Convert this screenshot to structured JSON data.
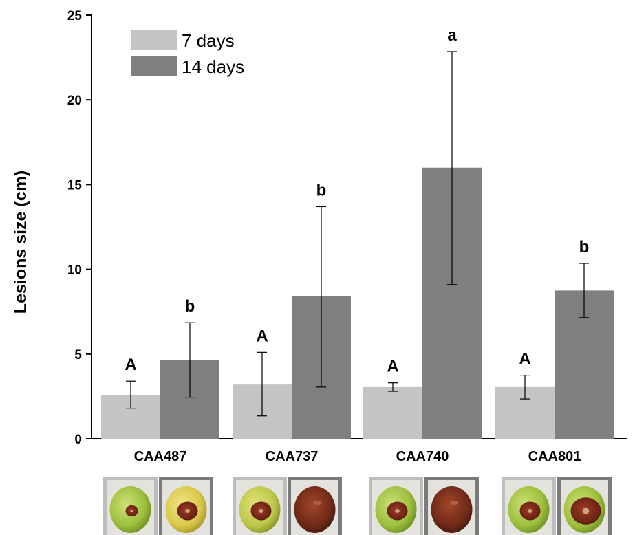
{
  "chart_data": {
    "type": "bar",
    "ylabel": "Lesions size (cm)",
    "ylim": [
      0,
      25
    ],
    "yticks": [
      0,
      5,
      10,
      15,
      20,
      25
    ],
    "categories": [
      "CAA487",
      "CAA737",
      "CAA740",
      "CAA801"
    ],
    "series": [
      {
        "name": "7 days",
        "color": "#c4c4c4",
        "values": [
          2.6,
          3.2,
          3.05,
          3.05
        ],
        "error_low": [
          1.8,
          1.35,
          2.8,
          2.35
        ],
        "error_high": [
          3.4,
          5.1,
          3.3,
          3.75
        ],
        "labels": [
          "A",
          "A",
          "A",
          "A"
        ]
      },
      {
        "name": "14 days",
        "color": "#7f7f7f",
        "values": [
          4.65,
          8.4,
          16.0,
          8.75
        ],
        "error_low": [
          2.45,
          3.05,
          9.1,
          7.15
        ],
        "error_high": [
          6.85,
          13.7,
          22.85,
          10.35
        ],
        "labels": [
          "b",
          "b",
          "a",
          "b"
        ]
      }
    ],
    "legend_position": "top-left",
    "grid": false
  },
  "photos": [
    {
      "category": "CAA487",
      "series": "7 days",
      "fruit": "green",
      "lesion": "small"
    },
    {
      "category": "CAA487",
      "series": "14 days",
      "fruit": "yellow",
      "lesion": "medium"
    },
    {
      "category": "CAA737",
      "series": "7 days",
      "fruit": "yellow-green",
      "lesion": "medium"
    },
    {
      "category": "CAA737",
      "series": "14 days",
      "fruit": "rotten",
      "lesion": "full"
    },
    {
      "category": "CAA740",
      "series": "7 days",
      "fruit": "green",
      "lesion": "medium"
    },
    {
      "category": "CAA740",
      "series": "14 days",
      "fruit": "rotten",
      "lesion": "full"
    },
    {
      "category": "CAA801",
      "series": "7 days",
      "fruit": "green",
      "lesion": "medium"
    },
    {
      "category": "CAA801",
      "series": "14 days",
      "fruit": "green",
      "lesion": "large"
    }
  ]
}
